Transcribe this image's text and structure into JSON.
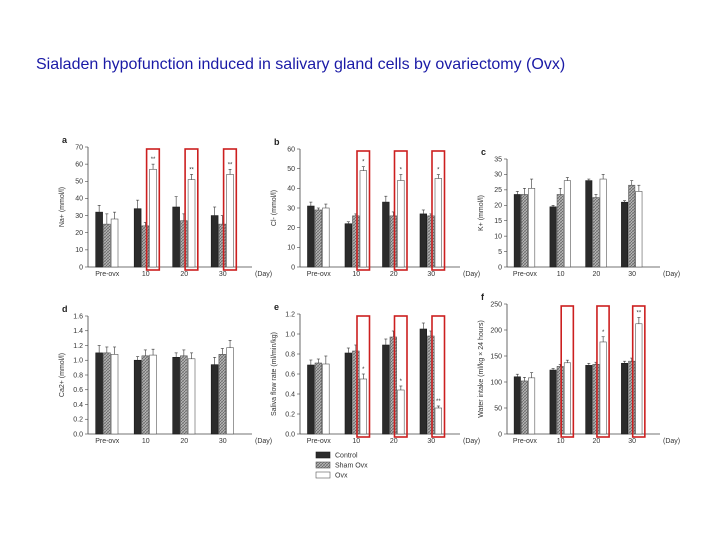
{
  "slide": {
    "title": "Sialaden hypofunction induced in salivary gland cells by ovariectomy (Ovx)"
  },
  "colors": {
    "control": "#2b2b2b",
    "sham": "#9a9a9a",
    "ovx": "#ffffff",
    "highlight": "#cc1f1f",
    "title": "#1a1aa6"
  },
  "legend": [
    "Control",
    "Sham Ovx",
    "Ovx"
  ],
  "chart_data": [
    {
      "panel": "a",
      "type": "bar",
      "ylabel": "Na+ (mmol/l)",
      "xlabel": "(Day)",
      "categories": [
        "Pre-ovx",
        "10",
        "20",
        "30"
      ],
      "ylim": [
        0,
        70
      ],
      "yticks": [
        0,
        10,
        20,
        30,
        40,
        50,
        60,
        70
      ],
      "series": [
        {
          "name": "Control",
          "values": [
            32,
            34,
            35,
            30
          ],
          "errors": [
            4,
            5,
            6,
            5
          ]
        },
        {
          "name": "Sham Ovx",
          "values": [
            25,
            24,
            27,
            25
          ],
          "errors": [
            6,
            2,
            4,
            5
          ]
        },
        {
          "name": "Ovx",
          "values": [
            28,
            57,
            51,
            54
          ],
          "errors": [
            4,
            3,
            3,
            3
          ]
        }
      ],
      "sig": [
        "",
        "**",
        "**",
        "**"
      ],
      "highlight": [
        1,
        2,
        3
      ]
    },
    {
      "panel": "b",
      "type": "bar",
      "ylabel": "Cl- (mmol/l)",
      "xlabel": "(Day)",
      "categories": [
        "Pre-ovx",
        "10",
        "20",
        "30"
      ],
      "ylim": [
        0,
        60
      ],
      "yticks": [
        0,
        10,
        20,
        30,
        40,
        50,
        60
      ],
      "series": [
        {
          "name": "Control",
          "values": [
            31,
            22,
            33,
            27
          ],
          "errors": [
            2,
            1,
            3,
            2
          ]
        },
        {
          "name": "Sham Ovx",
          "values": [
            29,
            26,
            26,
            26
          ],
          "errors": [
            1,
            1,
            2,
            1
          ]
        },
        {
          "name": "Ovx",
          "values": [
            30,
            49,
            44,
            45
          ],
          "errors": [
            2,
            2,
            3,
            2
          ]
        }
      ],
      "sig": [
        "",
        "*",
        "*",
        "*"
      ],
      "highlight": [
        1,
        2,
        3
      ]
    },
    {
      "panel": "c",
      "type": "bar",
      "ylabel": "K+ (mmol/l)",
      "xlabel": "(Day)",
      "categories": [
        "Pre-ovx",
        "10",
        "20",
        "30"
      ],
      "ylim": [
        0,
        35
      ],
      "yticks": [
        0,
        5,
        10,
        15,
        20,
        25,
        30,
        35
      ],
      "series": [
        {
          "name": "Control",
          "values": [
            23.5,
            19.5,
            28,
            21
          ],
          "errors": [
            1,
            0.5,
            0.5,
            0.5
          ]
        },
        {
          "name": "Sham Ovx",
          "values": [
            23.5,
            23.5,
            22.5,
            26.5
          ],
          "errors": [
            2,
            2,
            1,
            1.5
          ]
        },
        {
          "name": "Ovx",
          "values": [
            25.5,
            28,
            28.5,
            24.5
          ],
          "errors": [
            3,
            1,
            1.5,
            2
          ]
        }
      ],
      "sig": [
        "",
        "",
        "",
        ""
      ],
      "highlight": []
    },
    {
      "panel": "d",
      "type": "bar",
      "ylabel": "Ca2+ (mmol/l)",
      "xlabel": "(Day)",
      "categories": [
        "Pre-ovx",
        "10",
        "20",
        "30"
      ],
      "ylim": [
        0,
        1.6
      ],
      "yticks": [
        0.0,
        0.2,
        0.4,
        0.6,
        0.8,
        1.0,
        1.2,
        1.4,
        1.6
      ],
      "series": [
        {
          "name": "Control",
          "values": [
            1.1,
            1.0,
            1.04,
            0.94
          ],
          "errors": [
            0.1,
            0.05,
            0.06,
            0.1
          ]
        },
        {
          "name": "Sham Ovx",
          "values": [
            1.1,
            1.06,
            1.06,
            1.08
          ],
          "errors": [
            0.08,
            0.08,
            0.08,
            0.08
          ]
        },
        {
          "name": "Ovx",
          "values": [
            1.08,
            1.07,
            1.02,
            1.17
          ],
          "errors": [
            0.1,
            0.08,
            0.08,
            0.1
          ]
        }
      ],
      "sig": [
        "",
        "",
        "",
        ""
      ],
      "highlight": []
    },
    {
      "panel": "e",
      "type": "bar",
      "ylabel": "Saliva flow rate (ml/min/kg)",
      "xlabel": "(Day)",
      "categories": [
        "Pre-ovx",
        "10",
        "20",
        "30"
      ],
      "ylim": [
        0,
        1.2
      ],
      "yticks": [
        0.0,
        0.2,
        0.4,
        0.6,
        0.8,
        1.0,
        1.2
      ],
      "series": [
        {
          "name": "Control",
          "values": [
            0.69,
            0.81,
            0.89,
            1.05
          ],
          "errors": [
            0.05,
            0.05,
            0.06,
            0.06
          ]
        },
        {
          "name": "Sham Ovx",
          "values": [
            0.71,
            0.83,
            0.97,
            0.98
          ],
          "errors": [
            0.04,
            0.06,
            0.06,
            0.05
          ]
        },
        {
          "name": "Ovx",
          "values": [
            0.7,
            0.55,
            0.44,
            0.26
          ],
          "errors": [
            0.08,
            0.05,
            0.04,
            0.02
          ]
        }
      ],
      "sig": [
        "",
        "*",
        "*",
        "**"
      ],
      "highlight": [
        1,
        2,
        3
      ]
    },
    {
      "panel": "f",
      "type": "bar",
      "ylabel": "Water intake (ml/kg × 24 hours)",
      "xlabel": "(Day)",
      "categories": [
        "Pre-ovx",
        "10",
        "20",
        "30"
      ],
      "ylim": [
        0,
        250
      ],
      "yticks": [
        0,
        50,
        100,
        150,
        200,
        250
      ],
      "series": [
        {
          "name": "Control",
          "values": [
            110,
            123,
            132,
            136
          ],
          "errors": [
            5,
            3,
            4,
            4
          ]
        },
        {
          "name": "Sham Ovx",
          "values": [
            102,
            130,
            134,
            140
          ],
          "errors": [
            7,
            4,
            4,
            6
          ]
        },
        {
          "name": "Ovx",
          "values": [
            108,
            137,
            177,
            212
          ],
          "errors": [
            10,
            5,
            10,
            12
          ]
        }
      ],
      "sig": [
        "",
        "",
        "*",
        "**"
      ],
      "highlight": [
        1,
        2,
        3
      ]
    }
  ]
}
